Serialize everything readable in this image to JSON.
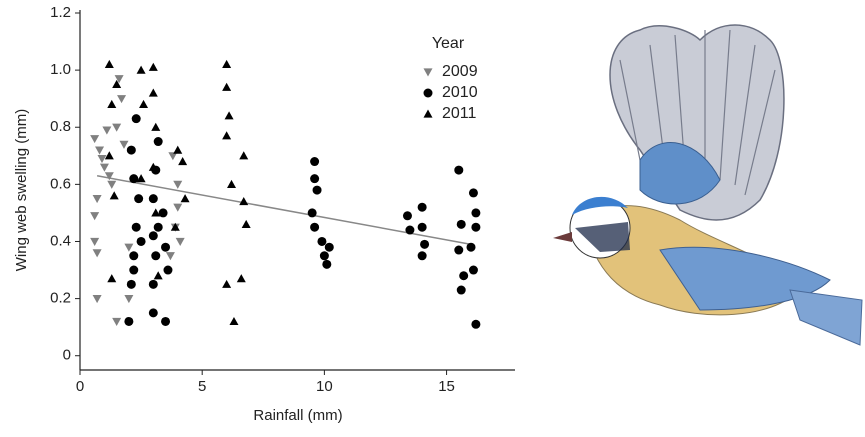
{
  "chart_data": {
    "type": "scatter",
    "x_label": "Rainfall (mm)",
    "y_label": "Wing web swelling (mm)",
    "legend_title": "Year",
    "legend_position": "upper right",
    "xlim": [
      0,
      17.8
    ],
    "ylim": [
      -0.05,
      1.2
    ],
    "xticks": [
      0,
      5,
      10,
      15
    ],
    "yticks": [
      0,
      0.2,
      0.4,
      0.6,
      0.8,
      {
        "value": 1.0,
        "label": "1.0"
      },
      {
        "value": 1.2,
        "label": "1.2"
      }
    ],
    "series": [
      {
        "name": "2009",
        "color": "#808080",
        "marker": "triangle-down",
        "x": [
          0.6,
          0.6,
          0.6,
          0.7,
          0.7,
          0.8,
          0.9,
          1.0,
          1.1,
          1.2,
          1.3,
          1.5,
          1.6,
          1.7,
          1.8,
          2.0,
          2.0,
          1.5,
          0.7,
          3.8,
          3.9,
          4.0,
          4.1,
          3.7,
          4.0
        ],
        "values": [
          0.76,
          0.49,
          0.4,
          0.2,
          0.36,
          0.72,
          0.69,
          0.66,
          0.79,
          0.63,
          0.6,
          0.12,
          0.97,
          0.9,
          0.74,
          0.2,
          0.38,
          0.8,
          0.55,
          0.7,
          0.45,
          0.6,
          0.4,
          0.35,
          0.52
        ]
      },
      {
        "name": "2010",
        "color": "#000000",
        "marker": "circle",
        "x": [
          2.0,
          2.1,
          2.2,
          2.3,
          2.4,
          2.2,
          2.1,
          2.3,
          2.5,
          2.2,
          3.0,
          3.0,
          3.1,
          3.2,
          3.0,
          3.1,
          3.2,
          3.0,
          3.4,
          3.5,
          3.6,
          3.5,
          9.6,
          9.6,
          9.7,
          9.5,
          9.6,
          9.9,
          10.0,
          10.2,
          10.1,
          13.4,
          13.5,
          14.0,
          14.0,
          14.1,
          14.0,
          15.5,
          15.6,
          15.5,
          15.7,
          15.6,
          16.1,
          16.2,
          16.2,
          16.0,
          16.1,
          16.2
        ],
        "values": [
          0.12,
          0.25,
          0.35,
          0.45,
          0.55,
          0.62,
          0.72,
          0.83,
          0.4,
          0.3,
          0.15,
          0.25,
          0.35,
          0.45,
          0.55,
          0.65,
          0.75,
          0.42,
          0.5,
          0.38,
          0.3,
          0.12,
          0.68,
          0.62,
          0.58,
          0.5,
          0.45,
          0.4,
          0.35,
          0.38,
          0.32,
          0.49,
          0.44,
          0.52,
          0.45,
          0.39,
          0.35,
          0.65,
          0.46,
          0.37,
          0.28,
          0.23,
          0.57,
          0.5,
          0.45,
          0.38,
          0.3,
          0.11
        ]
      },
      {
        "name": "2011",
        "color": "#000000",
        "marker": "triangle-up",
        "x": [
          1.2,
          1.3,
          1.2,
          1.4,
          1.3,
          1.5,
          2.5,
          2.6,
          2.5,
          3.0,
          3.0,
          3.1,
          3.0,
          3.1,
          3.2,
          4.0,
          4.2,
          4.3,
          3.9,
          6.0,
          6.0,
          6.1,
          6.0,
          6.2,
          6.0,
          6.3,
          6.7,
          6.7,
          6.8,
          6.6
        ],
        "values": [
          1.02,
          0.88,
          0.7,
          0.56,
          0.27,
          0.95,
          1.0,
          0.88,
          0.62,
          1.01,
          0.92,
          0.8,
          0.66,
          0.5,
          0.28,
          0.72,
          0.68,
          0.55,
          0.45,
          1.02,
          0.94,
          0.84,
          0.77,
          0.6,
          0.25,
          0.12,
          0.7,
          0.54,
          0.46,
          0.27
        ]
      }
    ],
    "trend_line": {
      "color": "#888888",
      "x": [
        0.7,
        16.0
      ],
      "y": [
        0.63,
        0.39
      ]
    }
  }
}
